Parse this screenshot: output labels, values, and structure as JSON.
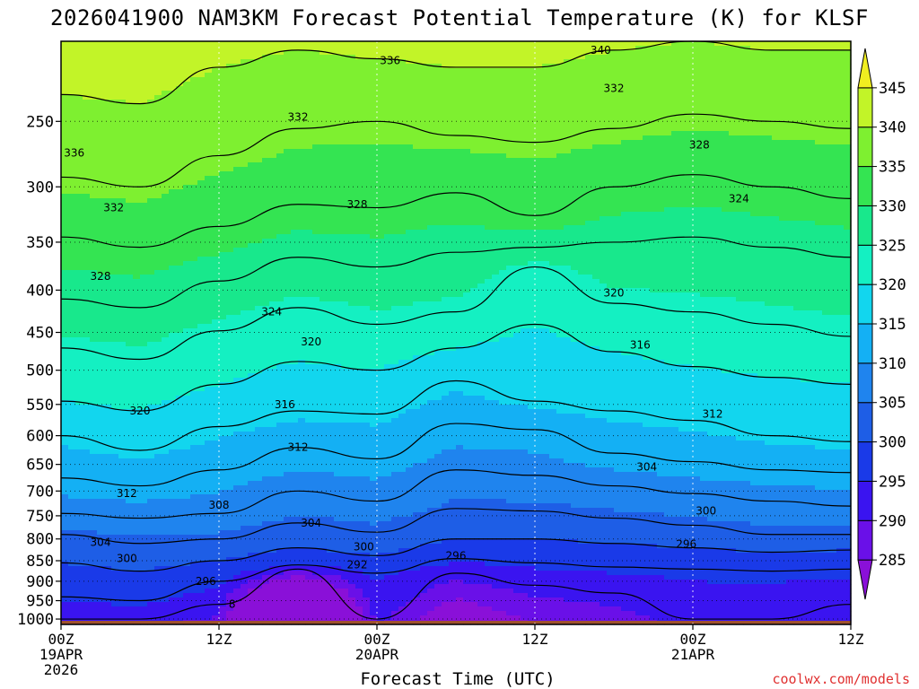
{
  "title": "2026041900 NAM3KM Forecast Potential Temperature (K) for KLSF",
  "credit": "coolwx.com/models",
  "chart_data": {
    "type": "contour",
    "title": "2026041900 NAM3KM Forecast Potential Temperature (K) for KLSF",
    "xlabel": "Forecast Time (UTC)",
    "ylabel": "",
    "x_ticks": [
      {
        "hour": 0,
        "lines": [
          "00Z",
          "19APR",
          "2026"
        ]
      },
      {
        "hour": 12,
        "lines": [
          "12Z"
        ]
      },
      {
        "hour": 24,
        "lines": [
          "00Z",
          "20APR"
        ]
      },
      {
        "hour": 36,
        "lines": [
          "12Z"
        ]
      },
      {
        "hour": 48,
        "lines": [
          "00Z",
          "21APR"
        ]
      },
      {
        "hour": 60,
        "lines": [
          "12Z"
        ]
      }
    ],
    "xlim": [
      0,
      60
    ],
    "y_ticks": [
      250,
      300,
      350,
      400,
      450,
      500,
      550,
      600,
      650,
      700,
      750,
      800,
      850,
      900,
      950,
      1000
    ],
    "ylim": [
      1015,
      200
    ],
    "yscale": "log-pressure",
    "colorbar": {
      "ticks": [
        345,
        340,
        335,
        330,
        325,
        320,
        315,
        310,
        305,
        300,
        295,
        290,
        285
      ],
      "levels": [
        280,
        285,
        290,
        295,
        300,
        305,
        310,
        315,
        320,
        325,
        330,
        335,
        340,
        345,
        350
      ],
      "colors": [
        "#8a10d8",
        "#6a10e8",
        "#3a14f0",
        "#1a3ae8",
        "#1e5ee6",
        "#1f84ee",
        "#14b0f4",
        "#12d6ee",
        "#14f0c2",
        "#18e88c",
        "#34e452",
        "#7ef030",
        "#c2f428",
        "#f0ee20"
      ]
    },
    "ground_color": "#a0522d",
    "contour_interval": 4,
    "profiles": [
      {
        "hour": 0,
        "p_at_theta": {
          "292": 1000,
          "296": 940,
          "300": 855,
          "304": 790,
          "308": 745,
          "312": 675,
          "316": 600,
          "320": 545,
          "324": 470,
          "328": 410,
          "332": 345,
          "336": 292,
          "340": 232
        }
      },
      {
        "hour": 6,
        "p_at_theta": {
          "292": 1000,
          "296": 950,
          "300": 875,
          "304": 810,
          "308": 755,
          "312": 690,
          "316": 625,
          "320": 560,
          "324": 485,
          "328": 420,
          "332": 355,
          "336": 300,
          "340": 238
        }
      },
      {
        "hour": 12,
        "p_at_theta": {
          "292": 960,
          "296": 900,
          "300": 850,
          "304": 800,
          "308": 745,
          "312": 660,
          "316": 585,
          "320": 520,
          "324": 448,
          "328": 390,
          "332": 335,
          "336": 275,
          "340": 215
        }
      },
      {
        "hour": 18,
        "p_at_theta": {
          "292": 870,
          "296": 860,
          "300": 820,
          "304": 765,
          "308": 700,
          "312": 620,
          "316": 560,
          "320": 488,
          "324": 420,
          "328": 365,
          "332": 315,
          "336": 255,
          "340": 205
        }
      },
      {
        "hour": 24,
        "p_at_theta": {
          "292": 1000,
          "296": 880,
          "300": 838,
          "304": 785,
          "308": 720,
          "312": 640,
          "316": 565,
          "320": 500,
          "324": 440,
          "328": 375,
          "332": 318,
          "336": 250,
          "340": 210
        }
      },
      {
        "hour": 30,
        "p_at_theta": {
          "292": 880,
          "296": 845,
          "300": 800,
          "304": 735,
          "308": 660,
          "312": 580,
          "316": 515,
          "320": 470,
          "324": 425,
          "328": 360,
          "332": 305,
          "336": 260,
          "340": 215
        }
      },
      {
        "hour": 36,
        "p_at_theta": {
          "292": 910,
          "296": 855,
          "300": 800,
          "304": 740,
          "308": 670,
          "312": 590,
          "316": 545,
          "320": 440,
          "324": 375,
          "328": 355,
          "332": 325,
          "336": 265,
          "340": 215
        }
      },
      {
        "hour": 42,
        "p_at_theta": {
          "292": 930,
          "296": 865,
          "300": 810,
          "304": 755,
          "308": 690,
          "312": 630,
          "316": 560,
          "320": 475,
          "324": 415,
          "328": 350,
          "332": 300,
          "336": 255,
          "340": 205
        }
      },
      {
        "hour": 48,
        "p_at_theta": {
          "292": 1000,
          "296": 870,
          "300": 820,
          "304": 770,
          "308": 705,
          "312": 645,
          "316": 575,
          "320": 495,
          "324": 425,
          "328": 345,
          "332": 290,
          "336": 245,
          "340": 200
        }
      },
      {
        "hour": 54,
        "p_at_theta": {
          "292": 1000,
          "296": 875,
          "300": 830,
          "304": 790,
          "308": 720,
          "312": 660,
          "316": 600,
          "320": 510,
          "324": 440,
          "328": 355,
          "332": 300,
          "336": 250,
          "340": 205
        }
      },
      {
        "hour": 60,
        "p_at_theta": {
          "292": 960,
          "296": 870,
          "300": 825,
          "304": 790,
          "308": 730,
          "312": 665,
          "316": 610,
          "320": 520,
          "324": 455,
          "328": 365,
          "332": 310,
          "336": 255,
          "340": 205
        }
      }
    ],
    "contour_labels": [
      {
        "text": "340",
        "hour": 41,
        "p": 205
      },
      {
        "text": "336",
        "hour": 25,
        "p": 211
      },
      {
        "text": "332",
        "hour": 42,
        "p": 228
      },
      {
        "text": "332",
        "hour": 18,
        "p": 247
      },
      {
        "text": "328",
        "hour": 48.5,
        "p": 267
      },
      {
        "text": "336",
        "hour": 1,
        "p": 273
      },
      {
        "text": "324",
        "hour": 51.5,
        "p": 310
      },
      {
        "text": "328",
        "hour": 22.5,
        "p": 315
      },
      {
        "text": "332",
        "hour": 4,
        "p": 318
      },
      {
        "text": "328",
        "hour": 3,
        "p": 385
      },
      {
        "text": "320",
        "hour": 42,
        "p": 403
      },
      {
        "text": "324",
        "hour": 16,
        "p": 425
      },
      {
        "text": "320",
        "hour": 19,
        "p": 462
      },
      {
        "text": "316",
        "hour": 44,
        "p": 466
      },
      {
        "text": "320",
        "hour": 6,
        "p": 560
      },
      {
        "text": "316",
        "hour": 17,
        "p": 550
      },
      {
        "text": "312",
        "hour": 49.5,
        "p": 565
      },
      {
        "text": "312",
        "hour": 18,
        "p": 620
      },
      {
        "text": "304",
        "hour": 44.5,
        "p": 655
      },
      {
        "text": "312",
        "hour": 5,
        "p": 705
      },
      {
        "text": "308",
        "hour": 12,
        "p": 728
      },
      {
        "text": "300",
        "hour": 49,
        "p": 740
      },
      {
        "text": "304",
        "hour": 19,
        "p": 765
      },
      {
        "text": "304",
        "hour": 3,
        "p": 808
      },
      {
        "text": "296",
        "hour": 47.5,
        "p": 812
      },
      {
        "text": "300",
        "hour": 23,
        "p": 818
      },
      {
        "text": "296",
        "hour": 30,
        "p": 838
      },
      {
        "text": "300",
        "hour": 5,
        "p": 845
      },
      {
        "text": "292",
        "hour": 22.5,
        "p": 860
      },
      {
        "text": "296",
        "hour": 11,
        "p": 900
      },
      {
        "text": "8",
        "hour": 13,
        "p": 960
      }
    ]
  }
}
